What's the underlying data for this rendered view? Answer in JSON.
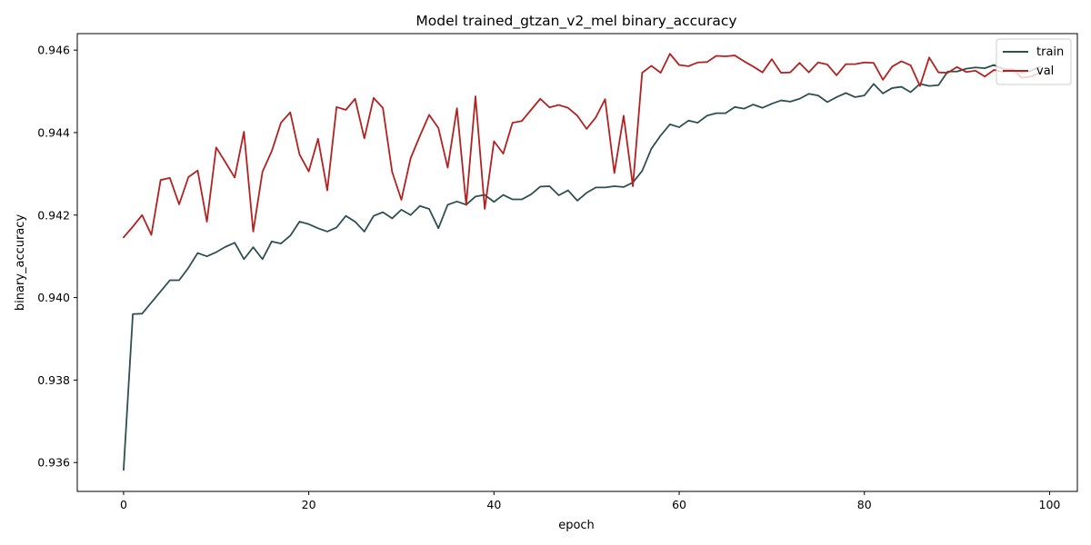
{
  "chart_data": {
    "type": "line",
    "title": "Model trained_gtzan_v2_mel binary_accuracy",
    "xlabel": "epoch",
    "ylabel": "binary_accuracy",
    "xlim": [
      -5,
      103
    ],
    "ylim": [
      0.9353,
      0.9464
    ],
    "xticks": [
      0,
      20,
      40,
      60,
      80,
      100
    ],
    "xtick_labels": [
      "0",
      "20",
      "40",
      "60",
      "80",
      "100"
    ],
    "yticks": [
      0.936,
      0.938,
      0.94,
      0.942,
      0.944,
      0.946
    ],
    "ytick_labels": [
      "0.936",
      "0.938",
      "0.940",
      "0.942",
      "0.944",
      "0.946"
    ],
    "grid": false,
    "legend_position": "top-right",
    "series": [
      {
        "name": "train",
        "color": "#2f4f4f",
        "x": [
          0,
          1,
          2,
          3,
          4,
          5,
          6,
          7,
          8,
          9,
          10,
          11,
          12,
          13,
          14,
          15,
          16,
          17,
          18,
          19,
          20,
          21,
          22,
          23,
          24,
          25,
          26,
          27,
          28,
          29,
          30,
          31,
          32,
          33,
          34,
          35,
          36,
          37,
          38,
          39,
          40,
          41,
          42,
          43,
          44,
          45,
          46,
          47,
          48,
          49,
          50,
          51,
          52,
          53,
          54,
          55,
          56,
          57,
          58,
          59,
          60,
          61,
          62,
          63,
          64,
          65,
          66,
          67,
          68,
          69,
          70,
          71,
          72,
          73,
          74,
          75,
          76,
          77,
          78,
          79,
          80,
          81,
          82,
          83,
          84,
          85,
          86,
          87,
          88,
          89,
          90,
          91,
          92,
          93,
          94,
          95,
          96,
          97,
          98,
          99
        ],
        "values": [
          0.93582,
          0.9396,
          0.93961,
          0.93988,
          0.94015,
          0.94042,
          0.94042,
          0.94072,
          0.94108,
          0.941,
          0.9411,
          0.94123,
          0.94133,
          0.94093,
          0.94122,
          0.94093,
          0.94136,
          0.94131,
          0.9415,
          0.94184,
          0.94178,
          0.94168,
          0.9416,
          0.9417,
          0.94198,
          0.94184,
          0.9416,
          0.94198,
          0.94207,
          0.94192,
          0.94213,
          0.942,
          0.94222,
          0.94215,
          0.94168,
          0.94225,
          0.94233,
          0.94225,
          0.94245,
          0.94249,
          0.94232,
          0.94249,
          0.94238,
          0.94238,
          0.9425,
          0.94269,
          0.9427,
          0.94248,
          0.9426,
          0.94235,
          0.94254,
          0.94267,
          0.94267,
          0.9427,
          0.94268,
          0.94279,
          0.94307,
          0.94361,
          0.94393,
          0.9442,
          0.94413,
          0.94429,
          0.94424,
          0.94441,
          0.94447,
          0.94447,
          0.94462,
          0.94458,
          0.94468,
          0.9446,
          0.9447,
          0.94478,
          0.94475,
          0.94482,
          0.94494,
          0.9449,
          0.94474,
          0.94486,
          0.94496,
          0.94486,
          0.9449,
          0.94518,
          0.94495,
          0.94508,
          0.94511,
          0.94498,
          0.94518,
          0.94513,
          0.94515,
          0.94548,
          0.94548,
          0.94555,
          0.94558,
          0.94556,
          0.94564,
          0.94554,
          0.94553,
          0.94545,
          0.9455,
          0.9456
        ]
      },
      {
        "name": "val",
        "color": "#b22222",
        "x": [
          0,
          1,
          2,
          3,
          4,
          5,
          6,
          7,
          8,
          9,
          10,
          11,
          12,
          13,
          14,
          15,
          16,
          17,
          18,
          19,
          20,
          21,
          22,
          23,
          24,
          25,
          26,
          27,
          28,
          29,
          30,
          31,
          32,
          33,
          34,
          35,
          36,
          37,
          38,
          39,
          40,
          41,
          42,
          43,
          44,
          45,
          46,
          47,
          48,
          49,
          50,
          51,
          52,
          53,
          54,
          55,
          56,
          57,
          58,
          59,
          60,
          61,
          62,
          63,
          64,
          65,
          66,
          67,
          68,
          69,
          70,
          71,
          72,
          73,
          74,
          75,
          76,
          77,
          78,
          79,
          80,
          81,
          82,
          83,
          84,
          85,
          86,
          87,
          88,
          89,
          90,
          91,
          92,
          93,
          94,
          95,
          96,
          97,
          98,
          99
        ],
        "values": [
          0.94146,
          0.94172,
          0.942,
          0.94152,
          0.94285,
          0.9429,
          0.94226,
          0.94292,
          0.94308,
          0.94184,
          0.94364,
          0.94328,
          0.94291,
          0.94402,
          0.9416,
          0.94305,
          0.94355,
          0.94424,
          0.94449,
          0.94347,
          0.94306,
          0.94385,
          0.9426,
          0.94462,
          0.94455,
          0.94482,
          0.94386,
          0.94484,
          0.9446,
          0.94305,
          0.94237,
          0.94338,
          0.94392,
          0.94443,
          0.94411,
          0.94315,
          0.94459,
          0.94225,
          0.94488,
          0.94215,
          0.94379,
          0.94349,
          0.94424,
          0.94428,
          0.94455,
          0.94482,
          0.94461,
          0.94467,
          0.9446,
          0.94441,
          0.94409,
          0.94437,
          0.94481,
          0.94302,
          0.94441,
          0.9427,
          0.94545,
          0.94562,
          0.94545,
          0.94591,
          0.94564,
          0.94561,
          0.9457,
          0.94571,
          0.94586,
          0.94585,
          0.94587,
          0.94573,
          0.9456,
          0.94546,
          0.94578,
          0.94545,
          0.94546,
          0.94569,
          0.94546,
          0.9457,
          0.94565,
          0.94539,
          0.94566,
          0.94566,
          0.9457,
          0.94569,
          0.94528,
          0.9456,
          0.94573,
          0.94563,
          0.94513,
          0.94582,
          0.94546,
          0.94545,
          0.94559,
          0.94547,
          0.9455,
          0.94536,
          0.94552,
          0.94547,
          0.94554,
          0.94533,
          0.94536,
          0.94546
        ]
      }
    ]
  }
}
